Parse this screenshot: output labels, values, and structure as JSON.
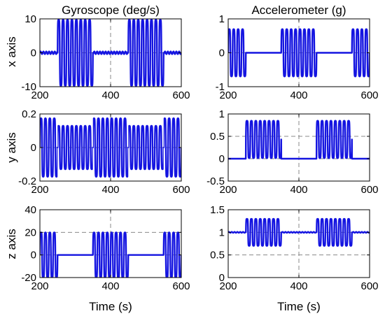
{
  "figure": {
    "col_titles": [
      "Gyroscope (deg/s)",
      "Accelerometer (g)"
    ],
    "row_labels": [
      "x axis",
      "y axis",
      "z axis"
    ],
    "xlabel": "Time (s)",
    "line_color": "#1414e0",
    "grid_color": "#8a8a8a"
  },
  "chart_data": [
    {
      "type": "line",
      "panel": "gyroscope-x",
      "title": "Gyroscope (deg/s)",
      "ylabel": "x axis",
      "xlabel": "",
      "xlim": [
        200,
        600
      ],
      "ylim": [
        -10,
        10
      ],
      "xticks": [
        200,
        400,
        600
      ],
      "yticks": [
        -10,
        0,
        10
      ],
      "xticklabels": [
        "200",
        "400",
        "600"
      ],
      "yticklabels": [
        "-10",
        "0",
        "10"
      ],
      "series": [
        {
          "active": [
            [
              250,
              350
            ],
            [
              450,
              550
            ]
          ],
          "amplitude": 9.8,
          "baseline": 0,
          "rest_ripple": 0.4
        }
      ]
    },
    {
      "type": "line",
      "panel": "accelerometer-x",
      "title": "Accelerometer (g)",
      "ylabel": "",
      "xlabel": "",
      "xlim": [
        200,
        600
      ],
      "ylim": [
        -1,
        1
      ],
      "xticks": [
        200,
        400,
        600
      ],
      "yticks": [
        -1,
        0,
        1
      ],
      "xticklabels": [
        "200",
        "400",
        "600"
      ],
      "yticklabels": [
        "-1",
        "0",
        "1"
      ],
      "series": [
        {
          "active": [
            [
              200,
              250
            ],
            [
              350,
              450
            ],
            [
              550,
              600
            ]
          ],
          "amplitude": 0.7,
          "baseline": 0,
          "rest_ripple": 0
        }
      ]
    },
    {
      "type": "line",
      "panel": "gyroscope-y",
      "title": "",
      "ylabel": "y axis",
      "xlabel": "",
      "xlim": [
        200,
        600
      ],
      "ylim": [
        -0.2,
        0.2
      ],
      "xticks": [
        200,
        400,
        600
      ],
      "yticks": [
        -0.2,
        0,
        0.2
      ],
      "xticklabels": [
        "200",
        "400",
        "600"
      ],
      "yticklabels": [
        "-0.2",
        "0",
        "0.2"
      ],
      "series": [
        {
          "active": [
            [
              200,
              250
            ],
            [
              350,
              450
            ],
            [
              550,
              600
            ]
          ],
          "amplitude": 0.175,
          "baseline": 0,
          "rest_ripple": 0
        },
        {
          "active": [
            [
              250,
              350
            ],
            [
              450,
              550
            ]
          ],
          "amplitude": 0.13,
          "baseline": 0,
          "rest_ripple": 0
        }
      ]
    },
    {
      "type": "line",
      "panel": "accelerometer-y",
      "title": "",
      "ylabel": "",
      "xlabel": "",
      "xlim": [
        200,
        600
      ],
      "ylim": [
        -0.5,
        1
      ],
      "xticks": [
        200,
        400,
        600
      ],
      "yticks": [
        -0.5,
        0,
        0.5,
        1
      ],
      "xticklabels": [
        "200",
        "400",
        "600"
      ],
      "yticklabels": [
        "-0.5",
        "0",
        "0.5",
        "1"
      ],
      "series": [
        {
          "active": [
            [
              250,
              350
            ],
            [
              450,
              550
            ]
          ],
          "amplitude": 0.42,
          "baseline": 0,
          "offset": 0.43,
          "rest_ripple": 0
        }
      ]
    },
    {
      "type": "line",
      "panel": "gyroscope-z",
      "title": "",
      "ylabel": "z axis",
      "xlabel": "Time (s)",
      "xlim": [
        200,
        600
      ],
      "ylim": [
        -20,
        40
      ],
      "xticks": [
        200,
        400,
        600
      ],
      "yticks": [
        -20,
        0,
        20,
        40
      ],
      "xticklabels": [
        "200",
        "400",
        "600"
      ],
      "yticklabels": [
        "-20",
        "0",
        "20",
        "40"
      ],
      "series": [
        {
          "active": [
            [
              200,
              250
            ],
            [
              350,
              450
            ],
            [
              550,
              600
            ]
          ],
          "amplitude": 20,
          "baseline": 0,
          "rest_ripple": 0
        }
      ]
    },
    {
      "type": "line",
      "panel": "accelerometer-z",
      "title": "",
      "ylabel": "",
      "xlabel": "Time (s)",
      "xlim": [
        200,
        600
      ],
      "ylim": [
        0,
        1.5
      ],
      "xticks": [
        200,
        400,
        600
      ],
      "yticks": [
        0,
        0.5,
        1,
        1.5
      ],
      "xticklabels": [
        "200",
        "400",
        "600"
      ],
      "yticklabels": [
        "0",
        "0.5",
        "1",
        "1.5"
      ],
      "series": [
        {
          "active": [
            [
              250,
              350
            ],
            [
              450,
              550
            ]
          ],
          "amplitude": 0.3,
          "baseline": 1,
          "offset": 0,
          "rest_ripple": 0.01
        }
      ]
    }
  ]
}
